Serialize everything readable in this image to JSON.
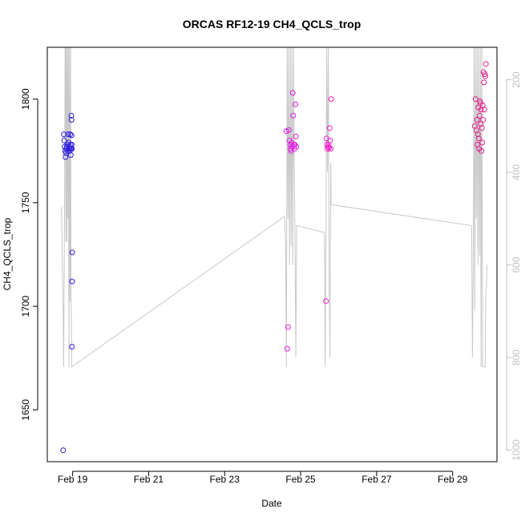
{
  "chart_data": {
    "type": "scatter",
    "title": "ORCAS RF12-19 CH4_QCLS_trop",
    "xlabel": "Date",
    "ylabel": "CH4_QCLS_trop",
    "x_ticks": [
      "Feb 19",
      "Feb 21",
      "Feb 23",
      "Feb 25",
      "Feb 27",
      "Feb 29"
    ],
    "xlim": [
      "2016-02-18 08:00",
      "2016-03-01 04:00"
    ],
    "y_ticks": [
      1650,
      1700,
      1750,
      1800
    ],
    "ylim": [
      1625,
      1825
    ],
    "y2_ticks": [
      200,
      400,
      600,
      800,
      1000
    ],
    "y2lim": [
      1025,
      130
    ],
    "grid": false,
    "colors": {
      "rf12": "#2d1ce0",
      "rf13": "#e01ce0",
      "rf14": "#f01cc8",
      "rf15": "#e0208c",
      "line": "#c8c8c8"
    },
    "series": [
      {
        "color_key": "rf12",
        "points": [
          [
            "2016-02-18 18:00",
            1630.5
          ],
          [
            "2016-02-18 18:30",
            1783
          ],
          [
            "2016-02-18 18:40",
            1780
          ],
          [
            "2016-02-18 19:00",
            1777
          ],
          [
            "2016-02-18 19:20",
            1775
          ],
          [
            "2016-02-18 19:30",
            1772
          ],
          [
            "2016-02-18 19:45",
            1774
          ],
          [
            "2016-02-18 20:00",
            1776
          ],
          [
            "2016-02-18 20:20",
            1777
          ],
          [
            "2016-02-18 20:40",
            1778
          ],
          [
            "2016-02-18 21:00",
            1775
          ],
          [
            "2016-02-18 21:10",
            1783
          ],
          [
            "2016-02-18 21:30",
            1779
          ],
          [
            "2016-02-18 21:50",
            1776
          ],
          [
            "2016-02-18 22:00",
            1777
          ],
          [
            "2016-02-18 22:10",
            1775
          ],
          [
            "2016-02-18 22:20",
            1776
          ],
          [
            "2016-02-18 22:30",
            1783
          ],
          [
            "2016-02-18 22:40",
            1778
          ],
          [
            "2016-02-18 22:50",
            1773
          ],
          [
            "2016-02-18 23:00",
            1776
          ],
          [
            "2016-02-18 23:10",
            1792
          ],
          [
            "2016-02-18 23:15",
            1790
          ],
          [
            "2016-02-18 23:20",
            1782.5
          ],
          [
            "2016-02-18 23:25",
            1778
          ],
          [
            "2016-02-18 23:30",
            1776
          ],
          [
            "2016-02-18 23:35",
            1680.5
          ],
          [
            "2016-02-18 23:40",
            1712
          ],
          [
            "2016-02-18 23:45",
            1726
          ]
        ]
      },
      {
        "color_key": "rf13",
        "points": [
          [
            "2016-02-24 15:00",
            1784.5
          ],
          [
            "2016-02-24 15:30",
            1679.5
          ],
          [
            "2016-02-24 16:00",
            1690
          ],
          [
            "2016-02-24 16:30",
            1785
          ],
          [
            "2016-02-24 17:00",
            1780
          ],
          [
            "2016-02-24 17:30",
            1778
          ],
          [
            "2016-02-24 17:45",
            1776
          ],
          [
            "2016-02-24 18:00",
            1775
          ],
          [
            "2016-02-24 18:20",
            1779
          ],
          [
            "2016-02-24 18:40",
            1777
          ],
          [
            "2016-02-24 19:00",
            1803
          ],
          [
            "2016-02-24 19:20",
            1792
          ],
          [
            "2016-02-24 19:40",
            1778
          ],
          [
            "2016-02-24 20:00",
            1776
          ],
          [
            "2016-02-24 20:20",
            1778
          ],
          [
            "2016-02-24 20:40",
            1797.5
          ],
          [
            "2016-02-24 21:00",
            1782
          ],
          [
            "2016-02-24 21:20",
            1777
          ]
        ]
      },
      {
        "color_key": "rf14",
        "points": [
          [
            "2016-02-25 16:00",
            1702.5
          ],
          [
            "2016-02-25 16:20",
            1781
          ],
          [
            "2016-02-25 16:40",
            1778
          ],
          [
            "2016-02-25 17:00",
            1776
          ],
          [
            "2016-02-25 17:20",
            1777
          ],
          [
            "2016-02-25 17:40",
            1778
          ],
          [
            "2016-02-25 18:00",
            1776.5
          ],
          [
            "2016-02-25 18:20",
            1786
          ],
          [
            "2016-02-25 18:40",
            1780
          ],
          [
            "2016-02-25 19:00",
            1776
          ],
          [
            "2016-02-25 19:20",
            1800
          ]
        ]
      },
      {
        "color_key": "rf15",
        "points": [
          [
            "2016-02-29 14:00",
            1787
          ],
          [
            "2016-02-29 14:30",
            1800
          ],
          [
            "2016-02-29 15:00",
            1785
          ],
          [
            "2016-02-29 15:20",
            1790
          ],
          [
            "2016-02-29 15:40",
            1778
          ],
          [
            "2016-02-29 16:00",
            1783
          ],
          [
            "2016-02-29 16:15",
            1796
          ],
          [
            "2016-02-29 16:30",
            1781
          ],
          [
            "2016-02-29 16:45",
            1776
          ],
          [
            "2016-02-29 17:00",
            1792
          ],
          [
            "2016-02-29 17:15",
            1799
          ],
          [
            "2016-02-29 17:30",
            1798
          ],
          [
            "2016-02-29 17:45",
            1788
          ],
          [
            "2016-02-29 18:00",
            1795
          ],
          [
            "2016-02-29 18:15",
            1775
          ],
          [
            "2016-02-29 18:30",
            1786
          ],
          [
            "2016-02-29 18:45",
            1779
          ],
          [
            "2016-02-29 19:00",
            1797
          ],
          [
            "2016-02-29 19:15",
            1790
          ],
          [
            "2016-02-29 19:30",
            1813
          ],
          [
            "2016-02-29 19:45",
            1808
          ],
          [
            "2016-02-29 20:00",
            1795
          ],
          [
            "2016-02-29 20:20",
            1812
          ],
          [
            "2016-02-29 20:40",
            1811
          ],
          [
            "2016-02-29 21:00",
            1817
          ]
        ]
      }
    ],
    "pressure_line": {
      "axis": "right",
      "points": [
        [
          "2016-02-18 17:00",
          475
        ],
        [
          "2016-02-18 17:30",
          600
        ],
        [
          "2016-02-18 18:00",
          700
        ],
        [
          "2016-02-18 18:20",
          820
        ],
        [
          "2016-02-18 18:40",
          600
        ],
        [
          "2016-02-18 19:00",
          400
        ],
        [
          "2016-02-18 19:15",
          130
        ],
        [
          "2016-02-18 19:30",
          130
        ],
        [
          "2016-02-18 19:45",
          550
        ],
        [
          "2016-02-18 20:00",
          130
        ],
        [
          "2016-02-18 20:20",
          550
        ],
        [
          "2016-02-18 20:40",
          130
        ],
        [
          "2016-02-18 21:00",
          500
        ],
        [
          "2016-02-18 21:20",
          130
        ],
        [
          "2016-02-18 21:40",
          820
        ],
        [
          "2016-02-18 22:00",
          130
        ],
        [
          "2016-02-18 22:20",
          680
        ],
        [
          "2016-02-18 22:40",
          130
        ],
        [
          "2016-02-18 23:00",
          650
        ],
        [
          "2016-02-18 23:30",
          820
        ],
        [
          "2016-02-24 14:00",
          495
        ],
        [
          "2016-02-24 14:30",
          560
        ],
        [
          "2016-02-24 15:00",
          820
        ],
        [
          "2016-02-24 15:30",
          130
        ],
        [
          "2016-02-24 16:00",
          500
        ],
        [
          "2016-02-24 16:30",
          130
        ],
        [
          "2016-02-24 17:00",
          600
        ],
        [
          "2016-02-24 17:30",
          130
        ],
        [
          "2016-02-24 18:00",
          560
        ],
        [
          "2016-02-24 18:30",
          130
        ],
        [
          "2016-02-24 19:00",
          600
        ],
        [
          "2016-02-24 19:30",
          130
        ],
        [
          "2016-02-24 20:00",
          400
        ],
        [
          "2016-02-24 20:30",
          560
        ],
        [
          "2016-02-24 21:00",
          800
        ],
        [
          "2016-02-24 21:30",
          515
        ],
        [
          "2016-02-25 15:00",
          530
        ],
        [
          "2016-02-25 15:30",
          820
        ],
        [
          "2016-02-25 16:00",
          520
        ],
        [
          "2016-02-25 16:30",
          130
        ],
        [
          "2016-02-25 17:00",
          400
        ],
        [
          "2016-02-25 17:30",
          130
        ],
        [
          "2016-02-25 18:00",
          600
        ],
        [
          "2016-02-25 18:30",
          800
        ],
        [
          "2016-02-25 19:00",
          380
        ],
        [
          "2016-02-25 19:20",
          470
        ],
        [
          "2016-02-29 12:00",
          515
        ],
        [
          "2016-02-29 12:30",
          800
        ],
        [
          "2016-02-29 13:00",
          600
        ],
        [
          "2016-02-29 13:30",
          130
        ],
        [
          "2016-02-29 14:00",
          700
        ],
        [
          "2016-02-29 14:30",
          130
        ],
        [
          "2016-02-29 15:00",
          500
        ],
        [
          "2016-02-29 15:30",
          130
        ],
        [
          "2016-02-29 16:00",
          600
        ],
        [
          "2016-02-29 16:30",
          130
        ],
        [
          "2016-02-29 17:00",
          580
        ],
        [
          "2016-02-29 17:30",
          130
        ],
        [
          "2016-02-29 18:00",
          820
        ],
        [
          "2016-02-29 18:30",
          130
        ],
        [
          "2016-02-29 19:00",
          820
        ],
        [
          "2016-02-29 20:30",
          820
        ],
        [
          "2016-02-29 21:00",
          650
        ],
        [
          "2016-02-29 21:20",
          650
        ],
        [
          "2016-02-29 21:40",
          600
        ]
      ]
    }
  }
}
